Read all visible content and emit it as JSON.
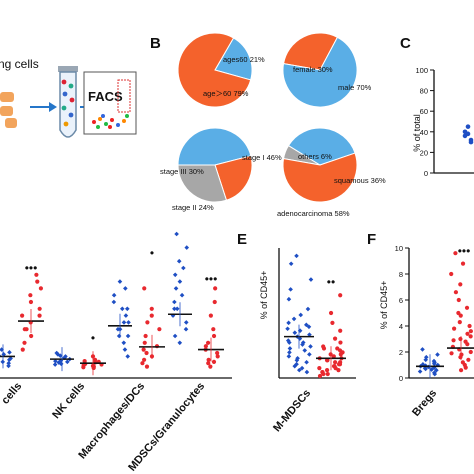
{
  "panels": {
    "b": "B",
    "c": "C",
    "e": "E",
    "f": "F"
  },
  "schematic": {
    "cells_text": "ng cells",
    "facs_text": "FACS"
  },
  "colors": {
    "orange": "#f4622c",
    "blue": "#5aaee6",
    "gray": "#a7a7a7",
    "red": "#e8292f",
    "dark_blue": "#1f4fc4"
  },
  "chart_data": [
    {
      "type": "pie",
      "panel": "B",
      "slices": [
        {
          "label": "ages60 21%",
          "value": 21,
          "color": "blue"
        },
        {
          "label": "age＞60 79%",
          "value": 79,
          "color": "orange"
        }
      ]
    },
    {
      "type": "pie",
      "panel": "B",
      "slices": [
        {
          "label": "female 30%",
          "value": 30,
          "color": "orange"
        },
        {
          "label": "male 70%",
          "value": 70,
          "color": "blue"
        }
      ]
    },
    {
      "type": "pie",
      "panel": "B",
      "slices": [
        {
          "label": "stage I 46%",
          "value": 46,
          "color": "blue"
        },
        {
          "label": "stage II 24%",
          "value": 24,
          "color": "orange"
        },
        {
          "label": "stage III 30%",
          "value": 30,
          "color": "gray"
        }
      ]
    },
    {
      "type": "pie",
      "panel": "B",
      "slices": [
        {
          "label": "others 6%",
          "value": 6,
          "color": "gray"
        },
        {
          "label": "squamous 36%",
          "value": 36,
          "color": "blue"
        },
        {
          "label": "adenocarcinoma 58%",
          "value": 58,
          "color": "orange"
        }
      ]
    },
    {
      "type": "scatter",
      "panel": "C",
      "ylabel": "% of total",
      "ylim": [
        0,
        100
      ],
      "yticks": [
        0,
        20,
        40,
        60,
        80,
        100
      ],
      "points": [
        36,
        38,
        32,
        40,
        45,
        30
      ]
    },
    {
      "type": "scatter",
      "panel": "D",
      "categories": [
        "cells",
        "NK cells",
        "Macrophages/DCs",
        "MDSCs/Granulocytes"
      ],
      "significance": [
        "•••",
        "•",
        "•",
        "•••"
      ],
      "series": [
        {
          "color": "blue",
          "means": [
            2.0,
            1.6,
            6.5,
            8.2
          ],
          "points": [
            [
              1.2,
              1.8,
              2.6,
              2.1,
              1.0,
              3.0,
              1.5,
              2.3,
              1.7,
              2.8,
              0.6,
              2.0
            ],
            [
              1.1,
              2.0,
              1.4,
              2.3,
              0.8,
              1.8,
              1.2,
              2.5,
              1.6,
              1.3,
              0.9,
              2.1
            ],
            [
              3,
              5,
              7,
              9,
              11,
              4,
              6,
              8,
              10,
              12,
              5,
              7,
              9,
              2,
              13,
              6
            ],
            [
              5,
              7,
              9,
              11,
              13,
              15,
              6,
              8,
              10,
              12,
              14,
              16,
              18,
              4,
              20,
              9
            ]
          ]
        },
        {
          "color": "red",
          "means": [
            7.2,
            1.0,
            3.4,
            3.0
          ],
          "points": [
            [
              4,
              6,
              8,
              10,
              12,
              5,
              7,
              9,
              11,
              13,
              6,
              8,
              3,
              14
            ],
            [
              0.4,
              0.8,
              1.2,
              0.6,
              1.5,
              0.9,
              0.5,
              2.0,
              1.1,
              0.7,
              1.3,
              0.3
            ],
            [
              0.5,
              1.5,
              2.5,
              3.5,
              5,
              7,
              9,
              12,
              2,
              4,
              6,
              1,
              3,
              8
            ],
            [
              0.5,
              1,
              1.5,
              2,
              3,
              4,
              5,
              6,
              8,
              10,
              12,
              2.5,
              1.2,
              3.5
            ]
          ]
        }
      ]
    },
    {
      "type": "scatter",
      "panel": "E",
      "ylabel": "% of CD45+",
      "xlabel": "M-MDSCs",
      "significance": "••",
      "series": [
        {
          "color": "blue",
          "mean": 0.21,
          "points": [
            0.62,
            0.58,
            0.5,
            0.45,
            0.4,
            0.35,
            0.32,
            0.3,
            0.28,
            0.26,
            0.25,
            0.24,
            0.22,
            0.21,
            0.2,
            0.19,
            0.18,
            0.17,
            0.16,
            0.15,
            0.14,
            0.12,
            0.11,
            0.1,
            0.09,
            0.08,
            0.06,
            0.05,
            0.04,
            0.03,
            0.27,
            0.23,
            0.18,
            0.13,
            0.07
          ]
        },
        {
          "color": "red",
          "mean": 0.1,
          "points": [
            0.42,
            0.33,
            0.28,
            0.24,
            0.2,
            0.18,
            0.16,
            0.15,
            0.14,
            0.13,
            0.12,
            0.11,
            0.1,
            0.1,
            0.09,
            0.08,
            0.08,
            0.07,
            0.06,
            0.06,
            0.05,
            0.05,
            0.04,
            0.04,
            0.03,
            0.03,
            0.02,
            0.02,
            0.01,
            0.15,
            0.12,
            0.09,
            0.07
          ]
        }
      ]
    },
    {
      "type": "scatter",
      "panel": "F",
      "ylabel": "% of CD45+",
      "xlabel": "Bregs",
      "yticks": [
        0,
        2,
        4,
        6,
        8,
        10
      ],
      "ylim": [
        0,
        10
      ],
      "significance": "•••",
      "series": [
        {
          "color": "blue",
          "mean": 0.9,
          "points": [
            0.3,
            0.5,
            0.6,
            0.7,
            0.8,
            0.9,
            1.0,
            1.1,
            1.2,
            1.4,
            1.6,
            1.8,
            2.2,
            0.4,
            0.65,
            0.85,
            1.05,
            0.75,
            0.95,
            1.3
          ]
        },
        {
          "color": "red",
          "mean": 2.3,
          "points": [
            0.6,
            1.0,
            1.4,
            1.8,
            2.2,
            2.6,
            3.0,
            3.4,
            3.8,
            4.3,
            4.8,
            5.4,
            6.0,
            6.6,
            7.2,
            8.0,
            8.8,
            9.6,
            1.2,
            2.0,
            2.4,
            2.8,
            3.2,
            1.6,
            3.6,
            4.0,
            5.0,
            0.8,
            2.9,
            1.9
          ]
        }
      ]
    }
  ]
}
